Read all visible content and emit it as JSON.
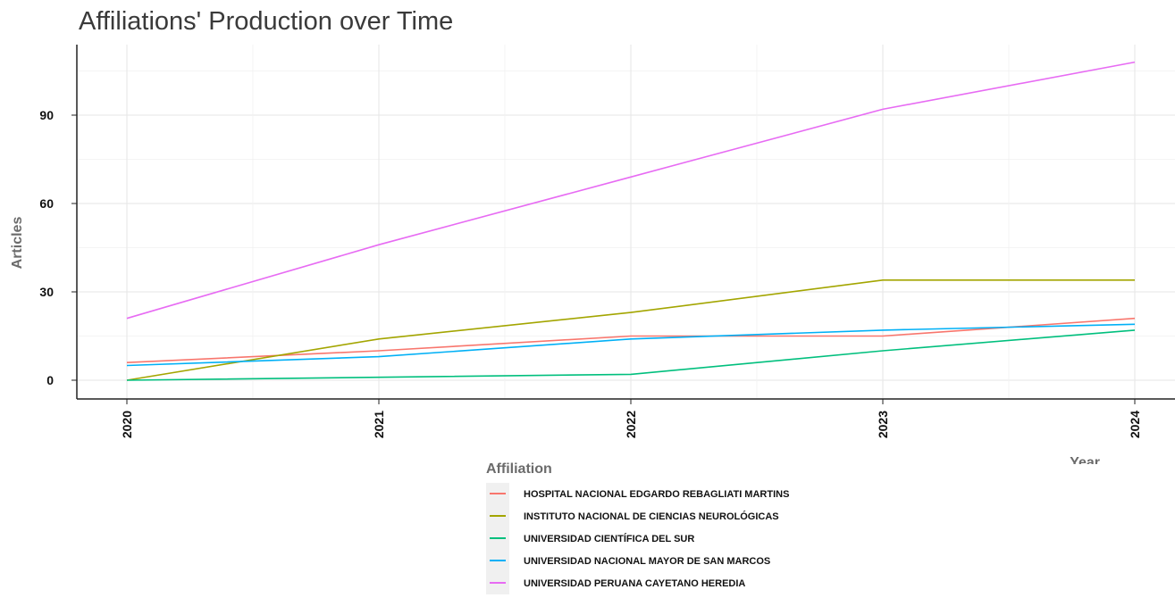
{
  "chart_data": {
    "type": "line",
    "title": "Affiliations' Production over Time",
    "xlabel": "Year",
    "ylabel": "Articles",
    "x": [
      2020,
      2021,
      2022,
      2023,
      2024
    ],
    "x_tick_labels": [
      "2020",
      "2021",
      "2022",
      "2023",
      "2024"
    ],
    "y_ticks": [
      0,
      30,
      60,
      90
    ],
    "y_tick_labels": [
      "0",
      "30",
      "60",
      "90"
    ],
    "ylim": [
      -6,
      113
    ],
    "grid": true,
    "legend_title": "Affiliation",
    "legend_position": "bottom",
    "series": [
      {
        "name": "HOSPITAL NACIONAL EDGARDO REBAGLIATI MARTINS",
        "color": "#F8766D",
        "values": [
          6,
          10,
          15,
          15,
          21
        ]
      },
      {
        "name": "INSTITUTO NACIONAL DE CIENCIAS NEUROLÓGICAS",
        "color": "#A3A500",
        "values": [
          0,
          14,
          23,
          34,
          34
        ]
      },
      {
        "name": "UNIVERSIDAD CIENTÍFICA DEL SUR",
        "color": "#00BF7D",
        "values": [
          0,
          1,
          2,
          10,
          17
        ]
      },
      {
        "name": "UNIVERSIDAD NACIONAL MAYOR DE SAN MARCOS",
        "color": "#00B0F6",
        "values": [
          5,
          8,
          14,
          17,
          19
        ]
      },
      {
        "name": "UNIVERSIDAD PERUANA CAYETANO HEREDIA",
        "color": "#E76BF3",
        "values": [
          21,
          46,
          69,
          92,
          108
        ]
      }
    ]
  }
}
